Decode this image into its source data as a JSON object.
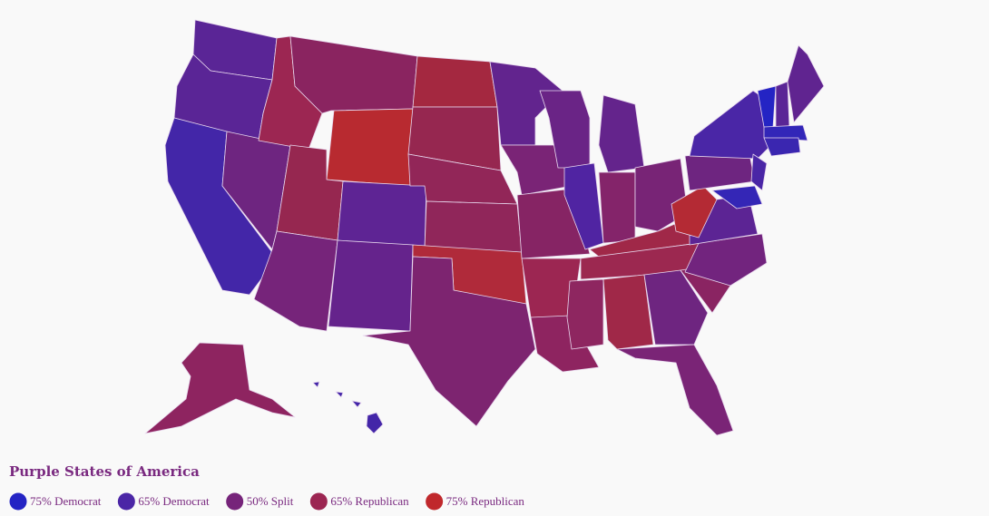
{
  "legend": {
    "title": "Purple States of America",
    "items": [
      {
        "label": "75% Democrat",
        "color": "#2424c4"
      },
      {
        "label": "65% Democrat",
        "color": "#4b26a6"
      },
      {
        "label": "50% Split",
        "color": "#76247a"
      },
      {
        "label": "65% Republican",
        "color": "#9c2652"
      },
      {
        "label": "75% Republican",
        "color": "#c0282c"
      }
    ]
  }
}
